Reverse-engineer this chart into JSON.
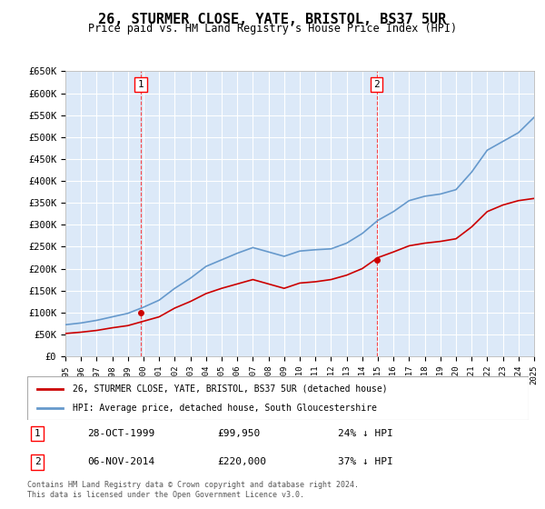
{
  "title": "26, STURMER CLOSE, YATE, BRISTOL, BS37 5UR",
  "subtitle": "Price paid vs. HM Land Registry's House Price Index (HPI)",
  "ylabel": "",
  "ylim": [
    0,
    650000
  ],
  "yticks": [
    0,
    50000,
    100000,
    150000,
    200000,
    250000,
    300000,
    350000,
    400000,
    450000,
    500000,
    550000,
    600000,
    650000
  ],
  "ytick_labels": [
    "£0",
    "£50K",
    "£100K",
    "£150K",
    "£200K",
    "£250K",
    "£300K",
    "£350K",
    "£400K",
    "£450K",
    "£500K",
    "£550K",
    "£600K",
    "£650K"
  ],
  "background_color": "#dce9f8",
  "plot_bg_color": "#dce9f8",
  "grid_color": "#ffffff",
  "line_color_price": "#cc0000",
  "line_color_hpi": "#6699cc",
  "transaction1_date": "1999-10-28",
  "transaction1_price": 99950,
  "transaction1_label": "1",
  "transaction2_date": "2014-11-06",
  "transaction2_price": 220000,
  "transaction2_label": "2",
  "legend_line1": "26, STURMER CLOSE, YATE, BRISTOL, BS37 5UR (detached house)",
  "legend_line2": "HPI: Average price, detached house, South Gloucestershire",
  "table_row1": [
    "1",
    "28-OCT-1999",
    "£99,950",
    "24% ↓ HPI"
  ],
  "table_row2": [
    "2",
    "06-NOV-2014",
    "£220,000",
    "37% ↓ HPI"
  ],
  "footer": "Contains HM Land Registry data © Crown copyright and database right 2024.\nThis data is licensed under the Open Government Licence v3.0.",
  "hpi_years": [
    1995,
    1996,
    1997,
    1998,
    1999,
    2000,
    2001,
    2002,
    2003,
    2004,
    2005,
    2006,
    2007,
    2008,
    2009,
    2010,
    2011,
    2012,
    2013,
    2014,
    2015,
    2016,
    2017,
    2018,
    2019,
    2020,
    2021,
    2022,
    2023,
    2024,
    2025
  ],
  "hpi_values": [
    72000,
    76000,
    82000,
    90000,
    98000,
    112000,
    128000,
    155000,
    178000,
    205000,
    220000,
    235000,
    248000,
    238000,
    228000,
    240000,
    243000,
    245000,
    258000,
    280000,
    310000,
    330000,
    355000,
    365000,
    370000,
    380000,
    420000,
    470000,
    490000,
    510000,
    545000
  ],
  "price_years": [
    1995,
    1996,
    1997,
    1998,
    1999,
    2000,
    2001,
    2002,
    2003,
    2004,
    2005,
    2006,
    2007,
    2008,
    2009,
    2010,
    2011,
    2012,
    2013,
    2014,
    2015,
    2016,
    2017,
    2018,
    2019,
    2020,
    2021,
    2022,
    2023,
    2024,
    2025
  ],
  "price_values": [
    52000,
    55000,
    59000,
    65000,
    70000,
    80000,
    90000,
    110000,
    125000,
    143000,
    155000,
    165000,
    175000,
    165000,
    155000,
    167000,
    170000,
    175000,
    185000,
    200000,
    225000,
    238000,
    252000,
    258000,
    262000,
    268000,
    295000,
    330000,
    345000,
    355000,
    360000
  ]
}
